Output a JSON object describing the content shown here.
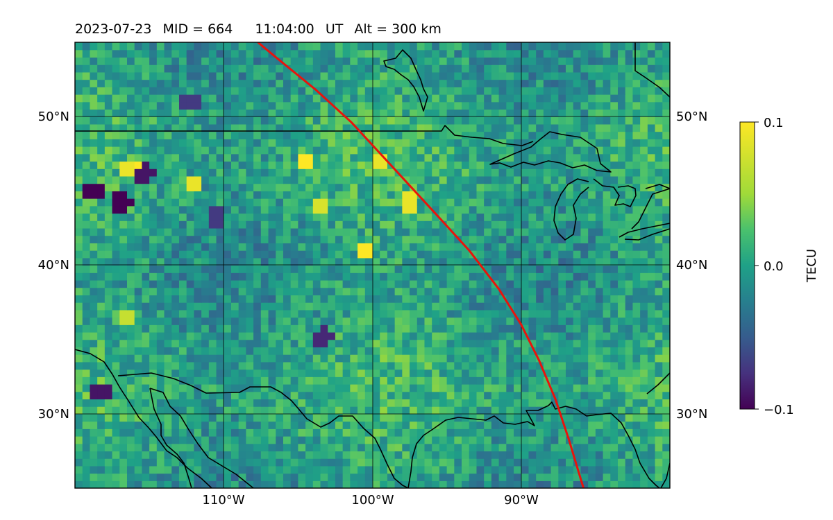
{
  "header": {
    "date": "2023-07-23",
    "mid": "MID = 664",
    "time": "11:04:00",
    "time_unit": "UT",
    "altitude": "Alt = 300 km"
  },
  "map": {
    "lon_range": [
      -120,
      -80
    ],
    "lat_range": [
      25,
      55
    ],
    "gridlines": true,
    "lon_ticks": [
      -110,
      -100,
      -90
    ],
    "lat_ticks": [
      30,
      40,
      50
    ],
    "lon_tick_labels": [
      "110°W",
      "100°W",
      "90°W"
    ],
    "lat_tick_labels": [
      "30°N",
      "40°N",
      "50°N"
    ],
    "coastlines": true,
    "field": "TEC perturbation",
    "track_color": "#e8140c",
    "track_points": [
      [
        -107.7,
        55.0
      ],
      [
        -106.5,
        54.0
      ],
      [
        -103.8,
        51.8
      ],
      [
        -101.4,
        49.6
      ],
      [
        -99.0,
        47.0
      ],
      [
        -95.6,
        43.3
      ],
      [
        -93.5,
        41.0
      ],
      [
        -91.5,
        38.4
      ],
      [
        -90.0,
        36.0
      ],
      [
        -88.8,
        33.6
      ],
      [
        -87.7,
        31.0
      ],
      [
        -86.8,
        28.3
      ],
      [
        -85.9,
        25.3
      ],
      [
        -85.8,
        25.0
      ]
    ]
  },
  "colorbar": {
    "label": "TECU",
    "min": -0.1,
    "max": 0.1,
    "ticks": [
      0.1,
      0.0,
      -0.1
    ],
    "tick_labels": [
      "0.1",
      "0.0",
      "−0.1"
    ],
    "colormap": "viridis"
  },
  "chart_data": {
    "type": "heatmap",
    "title": "2023-07-23  MID = 664    11:04:00  UT  Alt = 300 km",
    "xlabel": "",
    "ylabel": "",
    "xlim": [
      -120,
      -80
    ],
    "ylim": [
      25,
      55
    ],
    "value_range": [
      -0.1,
      0.1
    ],
    "unit": "TECU",
    "hotspots": [
      {
        "lon": -116.6,
        "lat": 46.5,
        "value": 0.09
      },
      {
        "lon": -115.5,
        "lat": 46.5,
        "value": 0.1
      },
      {
        "lon": -112.1,
        "lat": 45.5,
        "value": 0.09
      },
      {
        "lon": -104.4,
        "lat": 47.0,
        "value": 0.1
      },
      {
        "lon": -103.5,
        "lat": 44.1,
        "value": 0.08
      },
      {
        "lon": -100.6,
        "lat": 41.0,
        "value": 0.1
      },
      {
        "lon": -99.4,
        "lat": 47.0,
        "value": 0.09
      },
      {
        "lon": -97.5,
        "lat": 44.3,
        "value": 0.09
      },
      {
        "lon": -116.5,
        "lat": 36.5,
        "value": 0.07
      },
      {
        "lon": -118.8,
        "lat": 45.0,
        "value": -0.1
      },
      {
        "lon": -116.9,
        "lat": 44.2,
        "value": -0.1
      },
      {
        "lon": -115.3,
        "lat": 46.2,
        "value": -0.09
      },
      {
        "lon": -112.3,
        "lat": 51.0,
        "value": -0.07
      },
      {
        "lon": -118.2,
        "lat": 31.5,
        "value": -0.09
      },
      {
        "lon": -103.3,
        "lat": 35.2,
        "value": -0.08
      },
      {
        "lon": -110.5,
        "lat": 43.2,
        "value": -0.07
      }
    ]
  }
}
